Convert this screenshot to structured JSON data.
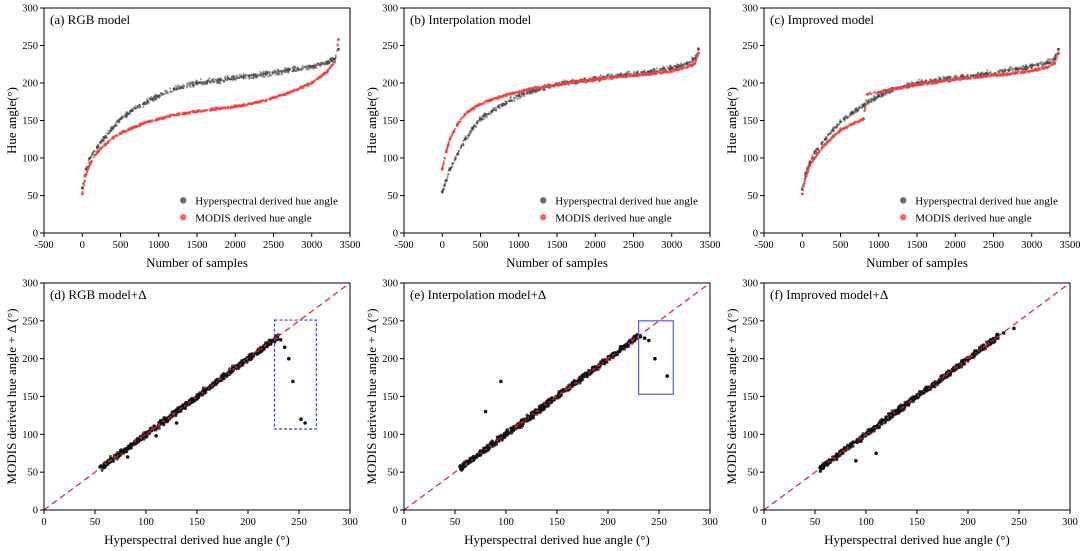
{
  "colors": {
    "hyperspectral": "#4a4a4a",
    "modis": "#f04040",
    "diagonal": "#e02020",
    "anomaly_box_dashed": "#3040e0",
    "anomaly_box_solid": "#5060e8"
  },
  "chart_data": [
    {
      "type": "scatter",
      "panel": "a",
      "title": "(a) RGB model",
      "xlabel": "Number of samples",
      "ylabel": "Hue angle(°)",
      "xlim": [
        -500,
        3500
      ],
      "ylim": [
        0,
        300
      ],
      "xticks": [
        -500,
        0,
        500,
        1000,
        1500,
        2000,
        2500,
        3000,
        3500
      ],
      "yticks": [
        0,
        50,
        100,
        150,
        200,
        250,
        300
      ],
      "legend_position": "bottom-right",
      "series": [
        {
          "name": "Hyperspectral derived hue angle",
          "color": "#4a4a4a",
          "x": [
            0,
            50,
            100,
            200,
            300,
            400,
            500,
            650,
            800,
            1000,
            1200,
            1500,
            1800,
            2100,
            2400,
            2700,
            3000,
            3200,
            3300,
            3350
          ],
          "y": [
            60,
            85,
            100,
            115,
            128,
            140,
            152,
            163,
            172,
            183,
            192,
            200,
            204,
            208,
            212,
            217,
            222,
            227,
            232,
            245
          ]
        },
        {
          "name": "MODIS derived hue angle",
          "color": "#f04040",
          "x": [
            0,
            50,
            100,
            200,
            300,
            400,
            500,
            650,
            800,
            1000,
            1200,
            1500,
            1800,
            2100,
            2400,
            2700,
            3000,
            3200,
            3300,
            3350
          ],
          "y": [
            52,
            78,
            92,
            108,
            118,
            127,
            133,
            140,
            146,
            152,
            157,
            162,
            166,
            170,
            177,
            187,
            200,
            215,
            228,
            258
          ]
        }
      ]
    },
    {
      "type": "scatter",
      "panel": "b",
      "title": "(b) Interpolation model",
      "xlabel": "Number of samples",
      "ylabel": "Hue angle(°)",
      "xlim": [
        -500,
        3500
      ],
      "ylim": [
        0,
        300
      ],
      "xticks": [
        -500,
        0,
        500,
        1000,
        1500,
        2000,
        2500,
        3000,
        3500
      ],
      "yticks": [
        0,
        50,
        100,
        150,
        200,
        250,
        300
      ],
      "legend_position": "bottom-right",
      "series": [
        {
          "name": "Hyperspectral derived hue angle",
          "color": "#4a4a4a",
          "x": [
            0,
            50,
            100,
            200,
            300,
            400,
            500,
            650,
            800,
            1000,
            1200,
            1500,
            1800,
            2100,
            2400,
            2700,
            3000,
            3200,
            3300,
            3350
          ],
          "y": [
            55,
            70,
            85,
            105,
            125,
            140,
            152,
            162,
            172,
            183,
            190,
            198,
            203,
            207,
            211,
            215,
            220,
            226,
            232,
            245
          ]
        },
        {
          "name": "MODIS derived hue angle",
          "color": "#f04040",
          "x": [
            0,
            50,
            100,
            200,
            300,
            400,
            500,
            650,
            800,
            1000,
            1200,
            1500,
            1800,
            2100,
            2400,
            2700,
            3000,
            3200,
            3300,
            3350
          ],
          "y": [
            85,
            108,
            125,
            145,
            158,
            166,
            172,
            178,
            183,
            188,
            193,
            198,
            202,
            206,
            209,
            212,
            216,
            221,
            226,
            240
          ]
        }
      ]
    },
    {
      "type": "scatter",
      "panel": "c",
      "title": "(c) Improved model",
      "xlabel": "Number of samples",
      "ylabel": "Hue angle(°)",
      "xlim": [
        -500,
        3500
      ],
      "ylim": [
        0,
        300
      ],
      "xticks": [
        -500,
        0,
        500,
        1000,
        1500,
        2000,
        2500,
        3000,
        3500
      ],
      "yticks": [
        0,
        50,
        100,
        150,
        200,
        250,
        300
      ],
      "legend_position": "bottom-right",
      "series": [
        {
          "name": "Hyperspectral derived hue angle",
          "color": "#4a4a4a",
          "x": [
            0,
            50,
            100,
            200,
            300,
            400,
            500,
            650,
            800,
            1000,
            1200,
            1500,
            1800,
            2100,
            2400,
            2700,
            3000,
            3200,
            3300,
            3350
          ],
          "y": [
            58,
            80,
            95,
            112,
            125,
            137,
            148,
            160,
            170,
            183,
            192,
            200,
            204,
            208,
            212,
            217,
            222,
            227,
            232,
            245
          ]
        },
        {
          "name": "MODIS derived hue angle",
          "color": "#f04040",
          "x": [
            0,
            50,
            100,
            200,
            300,
            400,
            500,
            650,
            800,
            850,
            1000,
            1200,
            1500,
            1800,
            2100,
            2400,
            2700,
            3000,
            3200,
            3300,
            3350
          ],
          "y": [
            52,
            76,
            90,
            106,
            118,
            128,
            137,
            145,
            152,
            185,
            188,
            192,
            198,
            202,
            206,
            209,
            212,
            216,
            221,
            226,
            240
          ]
        }
      ]
    },
    {
      "type": "scatter",
      "panel": "d",
      "title": "(d) RGB model+Δ",
      "xlabel": "Hyperspectral derived hue angle (°)",
      "ylabel": "MODIS derived hue angle + Δ (°)",
      "xlim": [
        0,
        300
      ],
      "ylim": [
        0,
        300
      ],
      "xticks": [
        0,
        50,
        100,
        150,
        200,
        250,
        300
      ],
      "yticks": [
        0,
        50,
        100,
        150,
        200,
        250,
        300
      ],
      "reference_line": "1:1",
      "highlight_box": {
        "x": [
          226,
          267
        ],
        "y": [
          107,
          251
        ],
        "style": "dashed"
      },
      "series": [
        {
          "name": "",
          "color": "#111111",
          "x": [
            55,
            65,
            75,
            85,
            95,
            105,
            115,
            125,
            135,
            145,
            155,
            165,
            175,
            185,
            195,
            205,
            215,
            222,
            228,
            232,
            236,
            240,
            244,
            252,
            256,
            82,
            110,
            130
          ],
          "y": [
            57,
            67,
            76,
            86,
            96,
            105,
            115,
            124,
            134,
            144,
            154,
            164,
            174,
            184,
            194,
            204,
            214,
            222,
            228,
            225,
            215,
            200,
            170,
            120,
            115,
            70,
            98,
            115
          ]
        }
      ]
    },
    {
      "type": "scatter",
      "panel": "e",
      "title": "(e) Interpolation model+Δ",
      "xlabel": "Hyperspectral derived hue angle (°)",
      "ylabel": "MODIS derived hue angle + Δ (°)",
      "xlim": [
        0,
        300
      ],
      "ylim": [
        0,
        300
      ],
      "xticks": [
        0,
        50,
        100,
        150,
        200,
        250,
        300
      ],
      "yticks": [
        0,
        50,
        100,
        150,
        200,
        250,
        300
      ],
      "reference_line": "1:1",
      "highlight_box": {
        "x": [
          230,
          264
        ],
        "y": [
          153,
          250
        ],
        "style": "solid"
      },
      "series": [
        {
          "name": "",
          "color": "#111111",
          "x": [
            55,
            65,
            75,
            85,
            95,
            105,
            115,
            125,
            135,
            145,
            155,
            165,
            175,
            185,
            195,
            205,
            215,
            225,
            232,
            236,
            240,
            246,
            258,
            95,
            80
          ],
          "y": [
            58,
            68,
            78,
            88,
            98,
            108,
            118,
            128,
            138,
            148,
            158,
            168,
            178,
            188,
            197,
            206,
            216,
            226,
            229,
            227,
            224,
            200,
            177,
            170,
            130
          ]
        }
      ]
    },
    {
      "type": "scatter",
      "panel": "f",
      "title": "(f) Improved model+Δ",
      "xlabel": "Hyperspectral derived hue angle (°)",
      "ylabel": "MODIS derived hue angle + Δ (°)",
      "xlim": [
        0,
        300
      ],
      "ylim": [
        0,
        300
      ],
      "xticks": [
        0,
        50,
        100,
        150,
        200,
        250,
        300
      ],
      "yticks": [
        0,
        50,
        100,
        150,
        200,
        250,
        300
      ],
      "reference_line": "1:1",
      "series": [
        {
          "name": "",
          "color": "#111111",
          "x": [
            55,
            65,
            75,
            85,
            95,
            105,
            115,
            125,
            135,
            145,
            155,
            165,
            175,
            185,
            195,
            205,
            215,
            225,
            235,
            245,
            90,
            110
          ],
          "y": [
            56,
            66,
            76,
            86,
            96,
            106,
            116,
            126,
            136,
            146,
            156,
            166,
            176,
            186,
            196,
            206,
            216,
            226,
            234,
            240,
            65,
            75
          ]
        }
      ]
    }
  ]
}
